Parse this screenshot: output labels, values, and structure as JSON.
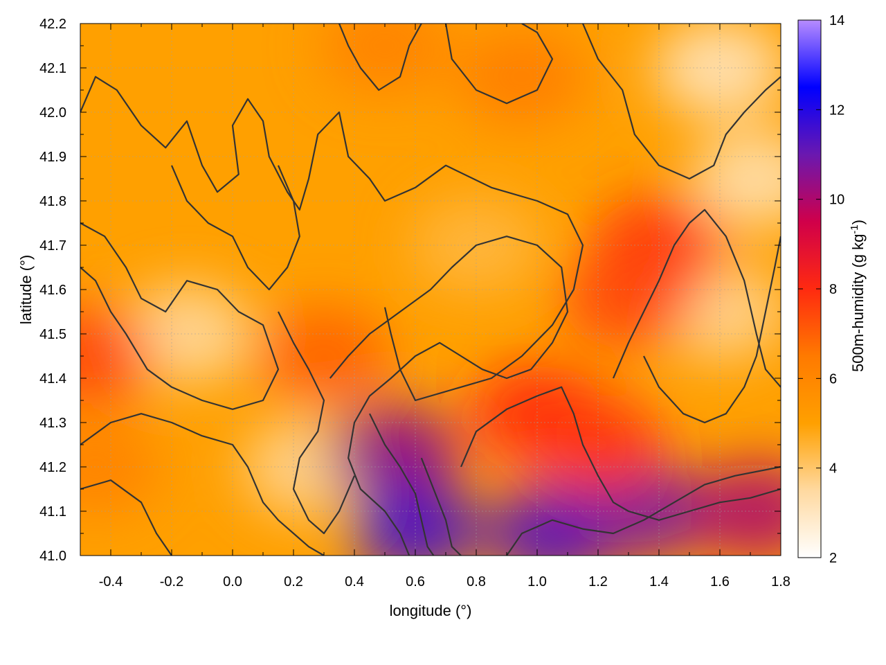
{
  "chart_data": {
    "type": "heatmap",
    "title": "",
    "xlabel": "longitude (°)",
    "ylabel": "latitude (°)",
    "colorbar_label_main": "500m-humidity (g kg",
    "colorbar_label_exp": "-1",
    "colorbar_label_close": ")",
    "xlim": [
      -0.5,
      1.8
    ],
    "ylim": [
      41.0,
      42.2
    ],
    "x_ticks": [
      -0.4,
      -0.2,
      0.0,
      0.2,
      0.4,
      0.6,
      0.8,
      1.0,
      1.2,
      1.4,
      1.6,
      1.8
    ],
    "x_tick_labels": [
      "-0.4",
      "-0.2",
      "0.0",
      "0.2",
      "0.4",
      "0.6",
      "0.8",
      "1.0",
      "1.2",
      "1.4",
      "1.6",
      "1.8"
    ],
    "y_ticks": [
      41.0,
      41.1,
      41.2,
      41.3,
      41.4,
      41.5,
      41.6,
      41.7,
      41.8,
      41.9,
      42.0,
      42.1,
      42.2
    ],
    "y_tick_labels": [
      "41.0",
      "41.1",
      "41.2",
      "41.3",
      "41.4",
      "41.5",
      "41.6",
      "41.7",
      "41.8",
      "41.9",
      "42.0",
      "42.1",
      "42.2"
    ],
    "color_range": [
      2,
      14
    ],
    "color_ticks": [
      2,
      4,
      6,
      8,
      10,
      12,
      14
    ],
    "color_tick_labels": [
      "2",
      "4",
      "6",
      "8",
      "10",
      "12",
      "14"
    ],
    "colormap": [
      "#ffffff",
      "#ffd9a0",
      "#ffa000",
      "#ff7a00",
      "#ff2a10",
      "#d0004a",
      "#6a18b0",
      "#0000ff",
      "#b78cff"
    ],
    "contour_color": "#333333",
    "grid": true,
    "field_features": [
      {
        "lon": -0.15,
        "lat": 41.5,
        "value": 3.5
      },
      {
        "lon": 0.25,
        "lat": 41.2,
        "value": 3.6
      },
      {
        "lon": 0.8,
        "lat": 41.7,
        "value": 4.4
      },
      {
        "lon": 1.6,
        "lat": 42.1,
        "value": 3.0
      },
      {
        "lon": 1.72,
        "lat": 41.85,
        "value": 3.2
      },
      {
        "lon": 1.6,
        "lat": 41.55,
        "value": 3.6
      },
      {
        "lon": 0.5,
        "lat": 42.15,
        "value": 6.2
      },
      {
        "lon": 0.95,
        "lat": 42.08,
        "value": 6.4
      },
      {
        "lon": 1.4,
        "lat": 41.7,
        "value": 7.8
      },
      {
        "lon": 1.3,
        "lat": 41.58,
        "value": 7.5
      },
      {
        "lon": 0.3,
        "lat": 41.45,
        "value": 7.0
      },
      {
        "lon": -0.45,
        "lat": 41.2,
        "value": 6.2
      },
      {
        "lon": 1.0,
        "lat": 41.32,
        "value": 8.0
      },
      {
        "lon": 0.53,
        "lat": 41.23,
        "value": 10.5
      },
      {
        "lon": 0.6,
        "lat": 41.06,
        "value": 11.5
      },
      {
        "lon": 1.05,
        "lat": 41.05,
        "value": 11.3
      },
      {
        "lon": 1.35,
        "lat": 41.1,
        "value": 10.8
      },
      {
        "lon": 1.72,
        "lat": 41.1,
        "value": 10.0
      },
      {
        "lon": 1.2,
        "lat": 41.25,
        "value": 7.8
      },
      {
        "lon": -0.48,
        "lat": 41.45,
        "value": 7.5
      }
    ],
    "contour_paths": [
      [
        [
          -0.5,
          42.0
        ],
        [
          -0.45,
          42.08
        ],
        [
          -0.38,
          42.05
        ],
        [
          -0.3,
          41.97
        ],
        [
          -0.22,
          41.92
        ],
        [
          -0.15,
          41.98
        ],
        [
          -0.1,
          41.88
        ],
        [
          -0.05,
          41.82
        ],
        [
          0.02,
          41.86
        ],
        [
          0.0,
          41.97
        ],
        [
          0.05,
          42.03
        ],
        [
          0.1,
          41.98
        ],
        [
          0.12,
          41.9
        ],
        [
          0.18,
          41.82
        ],
        [
          0.22,
          41.78
        ],
        [
          0.25,
          41.85
        ],
        [
          0.28,
          41.95
        ],
        [
          0.35,
          42.0
        ],
        [
          0.38,
          41.9
        ],
        [
          0.45,
          41.85
        ],
        [
          0.5,
          41.8
        ],
        [
          0.6,
          41.83
        ],
        [
          0.7,
          41.88
        ],
        [
          0.85,
          41.83
        ],
        [
          1.0,
          41.8
        ],
        [
          1.1,
          41.77
        ],
        [
          1.15,
          41.7
        ],
        [
          1.12,
          41.6
        ],
        [
          1.05,
          41.52
        ],
        [
          0.95,
          41.45
        ],
        [
          0.85,
          41.4
        ],
        [
          0.75,
          41.38
        ],
        [
          0.6,
          41.35
        ],
        [
          0.55,
          41.42
        ],
        [
          0.52,
          41.5
        ],
        [
          0.5,
          41.56
        ]
      ],
      [
        [
          -0.5,
          41.75
        ],
        [
          -0.42,
          41.72
        ],
        [
          -0.35,
          41.65
        ],
        [
          -0.3,
          41.58
        ],
        [
          -0.22,
          41.55
        ],
        [
          -0.15,
          41.62
        ],
        [
          -0.05,
          41.6
        ],
        [
          0.02,
          41.55
        ],
        [
          0.1,
          41.52
        ],
        [
          0.15,
          41.42
        ],
        [
          0.1,
          41.35
        ],
        [
          0.0,
          41.33
        ],
        [
          -0.1,
          41.35
        ],
        [
          -0.2,
          41.38
        ],
        [
          -0.28,
          41.42
        ],
        [
          -0.35,
          41.5
        ],
        [
          -0.4,
          41.55
        ],
        [
          -0.45,
          41.62
        ],
        [
          -0.5,
          41.65
        ]
      ],
      [
        [
          -0.5,
          41.25
        ],
        [
          -0.4,
          41.3
        ],
        [
          -0.3,
          41.32
        ],
        [
          -0.2,
          41.3
        ],
        [
          -0.1,
          41.27
        ],
        [
          0.0,
          41.25
        ],
        [
          0.05,
          41.2
        ],
        [
          0.1,
          41.12
        ],
        [
          0.15,
          41.08
        ],
        [
          0.2,
          41.05
        ],
        [
          0.25,
          41.02
        ],
        [
          0.3,
          41.0
        ]
      ],
      [
        [
          -0.5,
          41.15
        ],
        [
          -0.4,
          41.17
        ],
        [
          -0.3,
          41.12
        ],
        [
          -0.25,
          41.05
        ],
        [
          -0.2,
          41.0
        ]
      ],
      [
        [
          0.32,
          41.4
        ],
        [
          0.38,
          41.45
        ],
        [
          0.45,
          41.5
        ],
        [
          0.55,
          41.55
        ],
        [
          0.65,
          41.6
        ],
        [
          0.72,
          41.65
        ],
        [
          0.8,
          41.7
        ],
        [
          0.9,
          41.72
        ],
        [
          1.0,
          41.7
        ],
        [
          1.08,
          41.65
        ],
        [
          1.1,
          41.55
        ],
        [
          1.05,
          41.48
        ],
        [
          0.98,
          41.42
        ],
        [
          0.9,
          41.4
        ],
        [
          0.82,
          41.42
        ],
        [
          0.75,
          41.45
        ],
        [
          0.68,
          41.48
        ],
        [
          0.6,
          41.45
        ],
        [
          0.52,
          41.4
        ],
        [
          0.45,
          41.36
        ],
        [
          0.4,
          41.3
        ],
        [
          0.38,
          41.22
        ],
        [
          0.42,
          41.15
        ],
        [
          0.5,
          41.1
        ],
        [
          0.55,
          41.05
        ],
        [
          0.58,
          41.0
        ]
      ],
      [
        [
          0.75,
          41.2
        ],
        [
          0.8,
          41.28
        ],
        [
          0.9,
          41.33
        ],
        [
          1.0,
          41.36
        ],
        [
          1.08,
          41.38
        ],
        [
          1.12,
          41.32
        ],
        [
          1.15,
          41.25
        ],
        [
          1.2,
          41.18
        ],
        [
          1.25,
          41.12
        ],
        [
          1.3,
          41.1
        ],
        [
          1.4,
          41.08
        ],
        [
          1.5,
          41.1
        ],
        [
          1.6,
          41.12
        ],
        [
          1.7,
          41.13
        ],
        [
          1.8,
          41.15
        ]
      ],
      [
        [
          0.9,
          41.0
        ],
        [
          0.95,
          41.05
        ],
        [
          1.05,
          41.08
        ],
        [
          1.15,
          41.06
        ],
        [
          1.25,
          41.05
        ],
        [
          1.35,
          41.08
        ],
        [
          1.45,
          41.12
        ],
        [
          1.55,
          41.16
        ],
        [
          1.65,
          41.18
        ],
        [
          1.8,
          41.2
        ]
      ],
      [
        [
          1.15,
          42.2
        ],
        [
          1.2,
          42.12
        ],
        [
          1.28,
          42.05
        ],
        [
          1.32,
          41.95
        ],
        [
          1.4,
          41.88
        ],
        [
          1.5,
          41.85
        ],
        [
          1.58,
          41.88
        ],
        [
          1.62,
          41.95
        ],
        [
          1.68,
          42.0
        ],
        [
          1.75,
          42.05
        ],
        [
          1.8,
          42.08
        ]
      ],
      [
        [
          1.25,
          41.4
        ],
        [
          1.3,
          41.48
        ],
        [
          1.35,
          41.55
        ],
        [
          1.4,
          41.62
        ],
        [
          1.45,
          41.7
        ],
        [
          1.5,
          41.75
        ],
        [
          1.55,
          41.78
        ],
        [
          1.62,
          41.72
        ],
        [
          1.68,
          41.62
        ],
        [
          1.72,
          41.5
        ],
        [
          1.75,
          41.42
        ],
        [
          1.8,
          41.38
        ]
      ],
      [
        [
          0.35,
          42.2
        ],
        [
          0.38,
          42.15
        ],
        [
          0.42,
          42.1
        ],
        [
          0.48,
          42.05
        ],
        [
          0.55,
          42.08
        ],
        [
          0.58,
          42.15
        ],
        [
          0.62,
          42.2
        ]
      ],
      [
        [
          0.7,
          42.2
        ],
        [
          0.72,
          42.12
        ],
        [
          0.8,
          42.05
        ],
        [
          0.9,
          42.02
        ],
        [
          1.0,
          42.05
        ],
        [
          1.05,
          42.12
        ],
        [
          1.0,
          42.18
        ],
        [
          0.95,
          42.2
        ]
      ],
      [
        [
          0.15,
          41.55
        ],
        [
          0.2,
          41.48
        ],
        [
          0.25,
          41.42
        ],
        [
          0.3,
          41.35
        ],
        [
          0.28,
          41.28
        ],
        [
          0.22,
          41.22
        ],
        [
          0.2,
          41.15
        ],
        [
          0.25,
          41.08
        ],
        [
          0.3,
          41.05
        ],
        [
          0.35,
          41.1
        ],
        [
          0.4,
          41.18
        ]
      ],
      [
        [
          -0.2,
          41.88
        ],
        [
          -0.15,
          41.8
        ],
        [
          -0.08,
          41.75
        ],
        [
          0.0,
          41.72
        ],
        [
          0.05,
          41.65
        ],
        [
          0.12,
          41.6
        ],
        [
          0.18,
          41.65
        ],
        [
          0.22,
          41.72
        ],
        [
          0.2,
          41.8
        ],
        [
          0.15,
          41.88
        ]
      ],
      [
        [
          1.35,
          41.45
        ],
        [
          1.4,
          41.38
        ],
        [
          1.48,
          41.32
        ],
        [
          1.55,
          41.3
        ],
        [
          1.62,
          41.32
        ],
        [
          1.68,
          41.38
        ],
        [
          1.72,
          41.45
        ],
        [
          1.75,
          41.55
        ],
        [
          1.78,
          41.65
        ],
        [
          1.8,
          41.72
        ]
      ],
      [
        [
          0.62,
          41.22
        ],
        [
          0.66,
          41.15
        ],
        [
          0.7,
          41.08
        ],
        [
          0.72,
          41.02
        ],
        [
          0.75,
          41.0
        ]
      ],
      [
        [
          0.45,
          41.32
        ],
        [
          0.5,
          41.25
        ],
        [
          0.55,
          41.2
        ],
        [
          0.6,
          41.14
        ],
        [
          0.62,
          41.08
        ],
        [
          0.64,
          41.02
        ],
        [
          0.66,
          41.0
        ]
      ]
    ]
  }
}
